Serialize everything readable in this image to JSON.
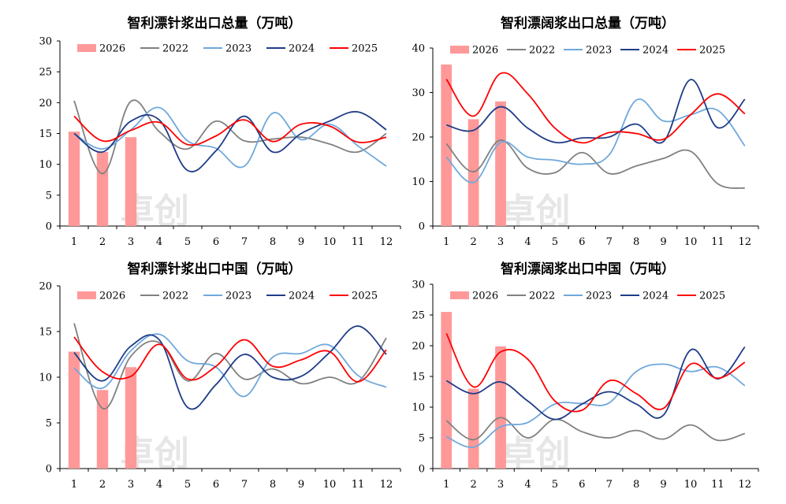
{
  "watermark": "卓创",
  "chart_data": [
    {
      "type": "bar+line",
      "title": "智利漂针浆出口总量（万吨）",
      "ylim": [
        0,
        30
      ],
      "yticks": [
        0,
        5,
        10,
        15,
        20,
        25,
        30
      ],
      "categories": [
        "1",
        "2",
        "3",
        "4",
        "5",
        "6",
        "7",
        "8",
        "9",
        "10",
        "11",
        "12"
      ],
      "bar_series": {
        "name": "2026",
        "values": [
          15.3,
          12.0,
          14.4
        ],
        "color": "#ff9999"
      },
      "series": [
        {
          "name": "2022",
          "color": "#808080",
          "values": [
            20.3,
            8.5,
            20.2,
            15.3,
            12.5,
            17.0,
            13.8,
            14.1,
            14.4,
            13.3,
            12.0,
            15.0
          ]
        },
        {
          "name": "2023",
          "color": "#6fa8dc",
          "values": [
            15.0,
            12.5,
            15.6,
            19.2,
            13.8,
            12.6,
            9.7,
            18.3,
            14.0,
            16.5,
            13.0,
            9.7
          ]
        },
        {
          "name": "2024",
          "color": "#1f3c88",
          "values": [
            15.0,
            12.0,
            17.0,
            17.2,
            9.0,
            12.2,
            17.8,
            12.0,
            15.0,
            17.0,
            18.5,
            15.6
          ]
        },
        {
          "name": "2025",
          "color": "#ff0000",
          "values": [
            17.8,
            13.8,
            15.5,
            16.8,
            13.2,
            14.6,
            17.2,
            13.7,
            16.5,
            16.2,
            13.6,
            14.4
          ]
        }
      ],
      "legend_position": "top"
    },
    {
      "type": "bar+line",
      "title": "智利漂阔浆出口总量（万吨）",
      "ylim": [
        0,
        40
      ],
      "yticks": [
        0,
        10,
        20,
        30,
        40
      ],
      "categories": [
        "1",
        "2",
        "3",
        "4",
        "5",
        "6",
        "7",
        "8",
        "9",
        "10",
        "11",
        "12"
      ],
      "bar_series": {
        "name": "2026",
        "values": [
          36.3,
          24.0,
          28.0
        ],
        "color": "#ff9999"
      },
      "series": [
        {
          "name": "2022",
          "color": "#808080",
          "values": [
            18.5,
            12.2,
            19.3,
            13.0,
            12.0,
            16.5,
            11.8,
            13.5,
            15.2,
            16.8,
            9.5,
            8.5
          ]
        },
        {
          "name": "2023",
          "color": "#6fa8dc",
          "values": [
            15.5,
            9.8,
            18.8,
            15.5,
            14.8,
            13.9,
            16.0,
            28.3,
            23.6,
            25.0,
            26.0,
            18.0
          ]
        },
        {
          "name": "2024",
          "color": "#1f3c88",
          "values": [
            22.7,
            21.5,
            26.8,
            22.0,
            18.8,
            19.8,
            20.0,
            22.9,
            19.0,
            32.9,
            22.1,
            28.5
          ]
        },
        {
          "name": "2025",
          "color": "#ff0000",
          "values": [
            33.0,
            24.7,
            34.3,
            29.7,
            22.0,
            18.7,
            21.0,
            20.8,
            19.5,
            25.0,
            29.7,
            25.2
          ]
        }
      ],
      "legend_position": "top"
    },
    {
      "type": "bar+line",
      "title": "智利漂针浆出口中国（万吨）",
      "ylim": [
        0,
        20
      ],
      "yticks": [
        0,
        5,
        10,
        15,
        20
      ],
      "categories": [
        "1",
        "2",
        "3",
        "4",
        "5",
        "6",
        "7",
        "8",
        "9",
        "10",
        "11",
        "12"
      ],
      "bar_series": {
        "name": "2026",
        "values": [
          12.8,
          8.6,
          11.1
        ],
        "color": "#ff9999"
      },
      "series": [
        {
          "name": "2022",
          "color": "#808080",
          "values": [
            15.9,
            6.6,
            12.3,
            13.8,
            9.6,
            12.6,
            9.8,
            10.9,
            9.3,
            10.0,
            9.5,
            14.3
          ]
        },
        {
          "name": "2023",
          "color": "#6fa8dc",
          "values": [
            11.0,
            8.8,
            12.9,
            14.7,
            11.8,
            11.1,
            7.9,
            12.2,
            12.6,
            13.5,
            10.2,
            8.9
          ]
        },
        {
          "name": "2024",
          "color": "#1f3c88",
          "values": [
            12.7,
            9.6,
            13.4,
            14.1,
            6.7,
            9.2,
            12.5,
            10.0,
            10.1,
            12.7,
            15.6,
            12.5
          ]
        },
        {
          "name": "2025",
          "color": "#ff0000",
          "values": [
            14.4,
            10.6,
            10.1,
            13.6,
            9.8,
            11.2,
            14.1,
            11.2,
            11.9,
            12.8,
            9.5,
            13.0
          ]
        }
      ],
      "legend_position": "top"
    },
    {
      "type": "bar+line",
      "title": "智利漂阔浆出口中国（万吨）",
      "ylim": [
        0,
        30
      ],
      "yticks": [
        0,
        5,
        10,
        15,
        20,
        25,
        30
      ],
      "categories": [
        "1",
        "2",
        "3",
        "4",
        "5",
        "6",
        "7",
        "8",
        "9",
        "10",
        "11",
        "12"
      ],
      "bar_series": {
        "name": "2026",
        "values": [
          25.5,
          13.0,
          19.9
        ],
        "color": "#ff9999"
      },
      "series": [
        {
          "name": "2022",
          "color": "#808080",
          "values": [
            7.8,
            4.7,
            8.3,
            5.0,
            8.0,
            6.0,
            5.0,
            6.2,
            4.8,
            7.1,
            4.6,
            5.7
          ]
        },
        {
          "name": "2023",
          "color": "#6fa8dc",
          "values": [
            5.2,
            3.5,
            6.8,
            7.5,
            10.5,
            10.6,
            10.7,
            15.8,
            17.0,
            15.8,
            16.5,
            13.5
          ]
        },
        {
          "name": "2024",
          "color": "#1f3c88",
          "values": [
            14.3,
            12.2,
            14.1,
            11.0,
            8.0,
            10.5,
            12.5,
            10.5,
            8.7,
            19.3,
            14.6,
            19.8
          ]
        },
        {
          "name": "2025",
          "color": "#ff0000",
          "values": [
            22.0,
            13.3,
            19.0,
            17.8,
            11.0,
            9.5,
            14.3,
            12.2,
            9.8,
            17.0,
            14.7,
            17.3
          ]
        }
      ],
      "legend_position": "top"
    }
  ]
}
